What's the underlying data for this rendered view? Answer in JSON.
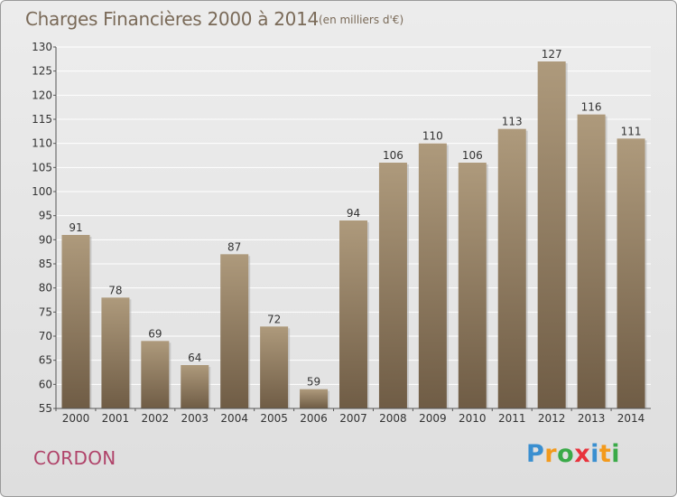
{
  "header": {
    "title": "Charges Financières 2000 à 2014",
    "subtitle": "(en milliers d'€)"
  },
  "footer": {
    "commune": "CORDON",
    "logo_letters": [
      {
        "ch": "P",
        "color": "#3a8fd0"
      },
      {
        "ch": "r",
        "color": "#f39a1c"
      },
      {
        "ch": "o",
        "color": "#3aaa48"
      },
      {
        "ch": "x",
        "color": "#e8323c"
      },
      {
        "ch": "i",
        "color": "#3a8fd0"
      },
      {
        "ch": "t",
        "color": "#f39a1c"
      },
      {
        "ch": "i",
        "color": "#3aaa48"
      }
    ]
  },
  "chart_data": {
    "type": "bar",
    "categories": [
      "2000",
      "2001",
      "2002",
      "2003",
      "2004",
      "2005",
      "2006",
      "2007",
      "2008",
      "2009",
      "2010",
      "2011",
      "2012",
      "2013",
      "2014"
    ],
    "values": [
      91,
      78,
      69,
      64,
      87,
      72,
      59,
      94,
      106,
      110,
      106,
      113,
      127,
      116,
      111
    ],
    "title": "Charges Financières 2000 à 2014",
    "subtitle": "(en milliers d'€)",
    "xlabel": "",
    "ylabel": "",
    "ylim": [
      55,
      130
    ],
    "yticks": [
      55,
      60,
      65,
      70,
      75,
      80,
      85,
      90,
      95,
      100,
      105,
      110,
      115,
      120,
      125,
      130
    ],
    "grid": true,
    "bar_color_top": "#ae9a7c",
    "bar_color_bottom": "#6f5c45"
  }
}
